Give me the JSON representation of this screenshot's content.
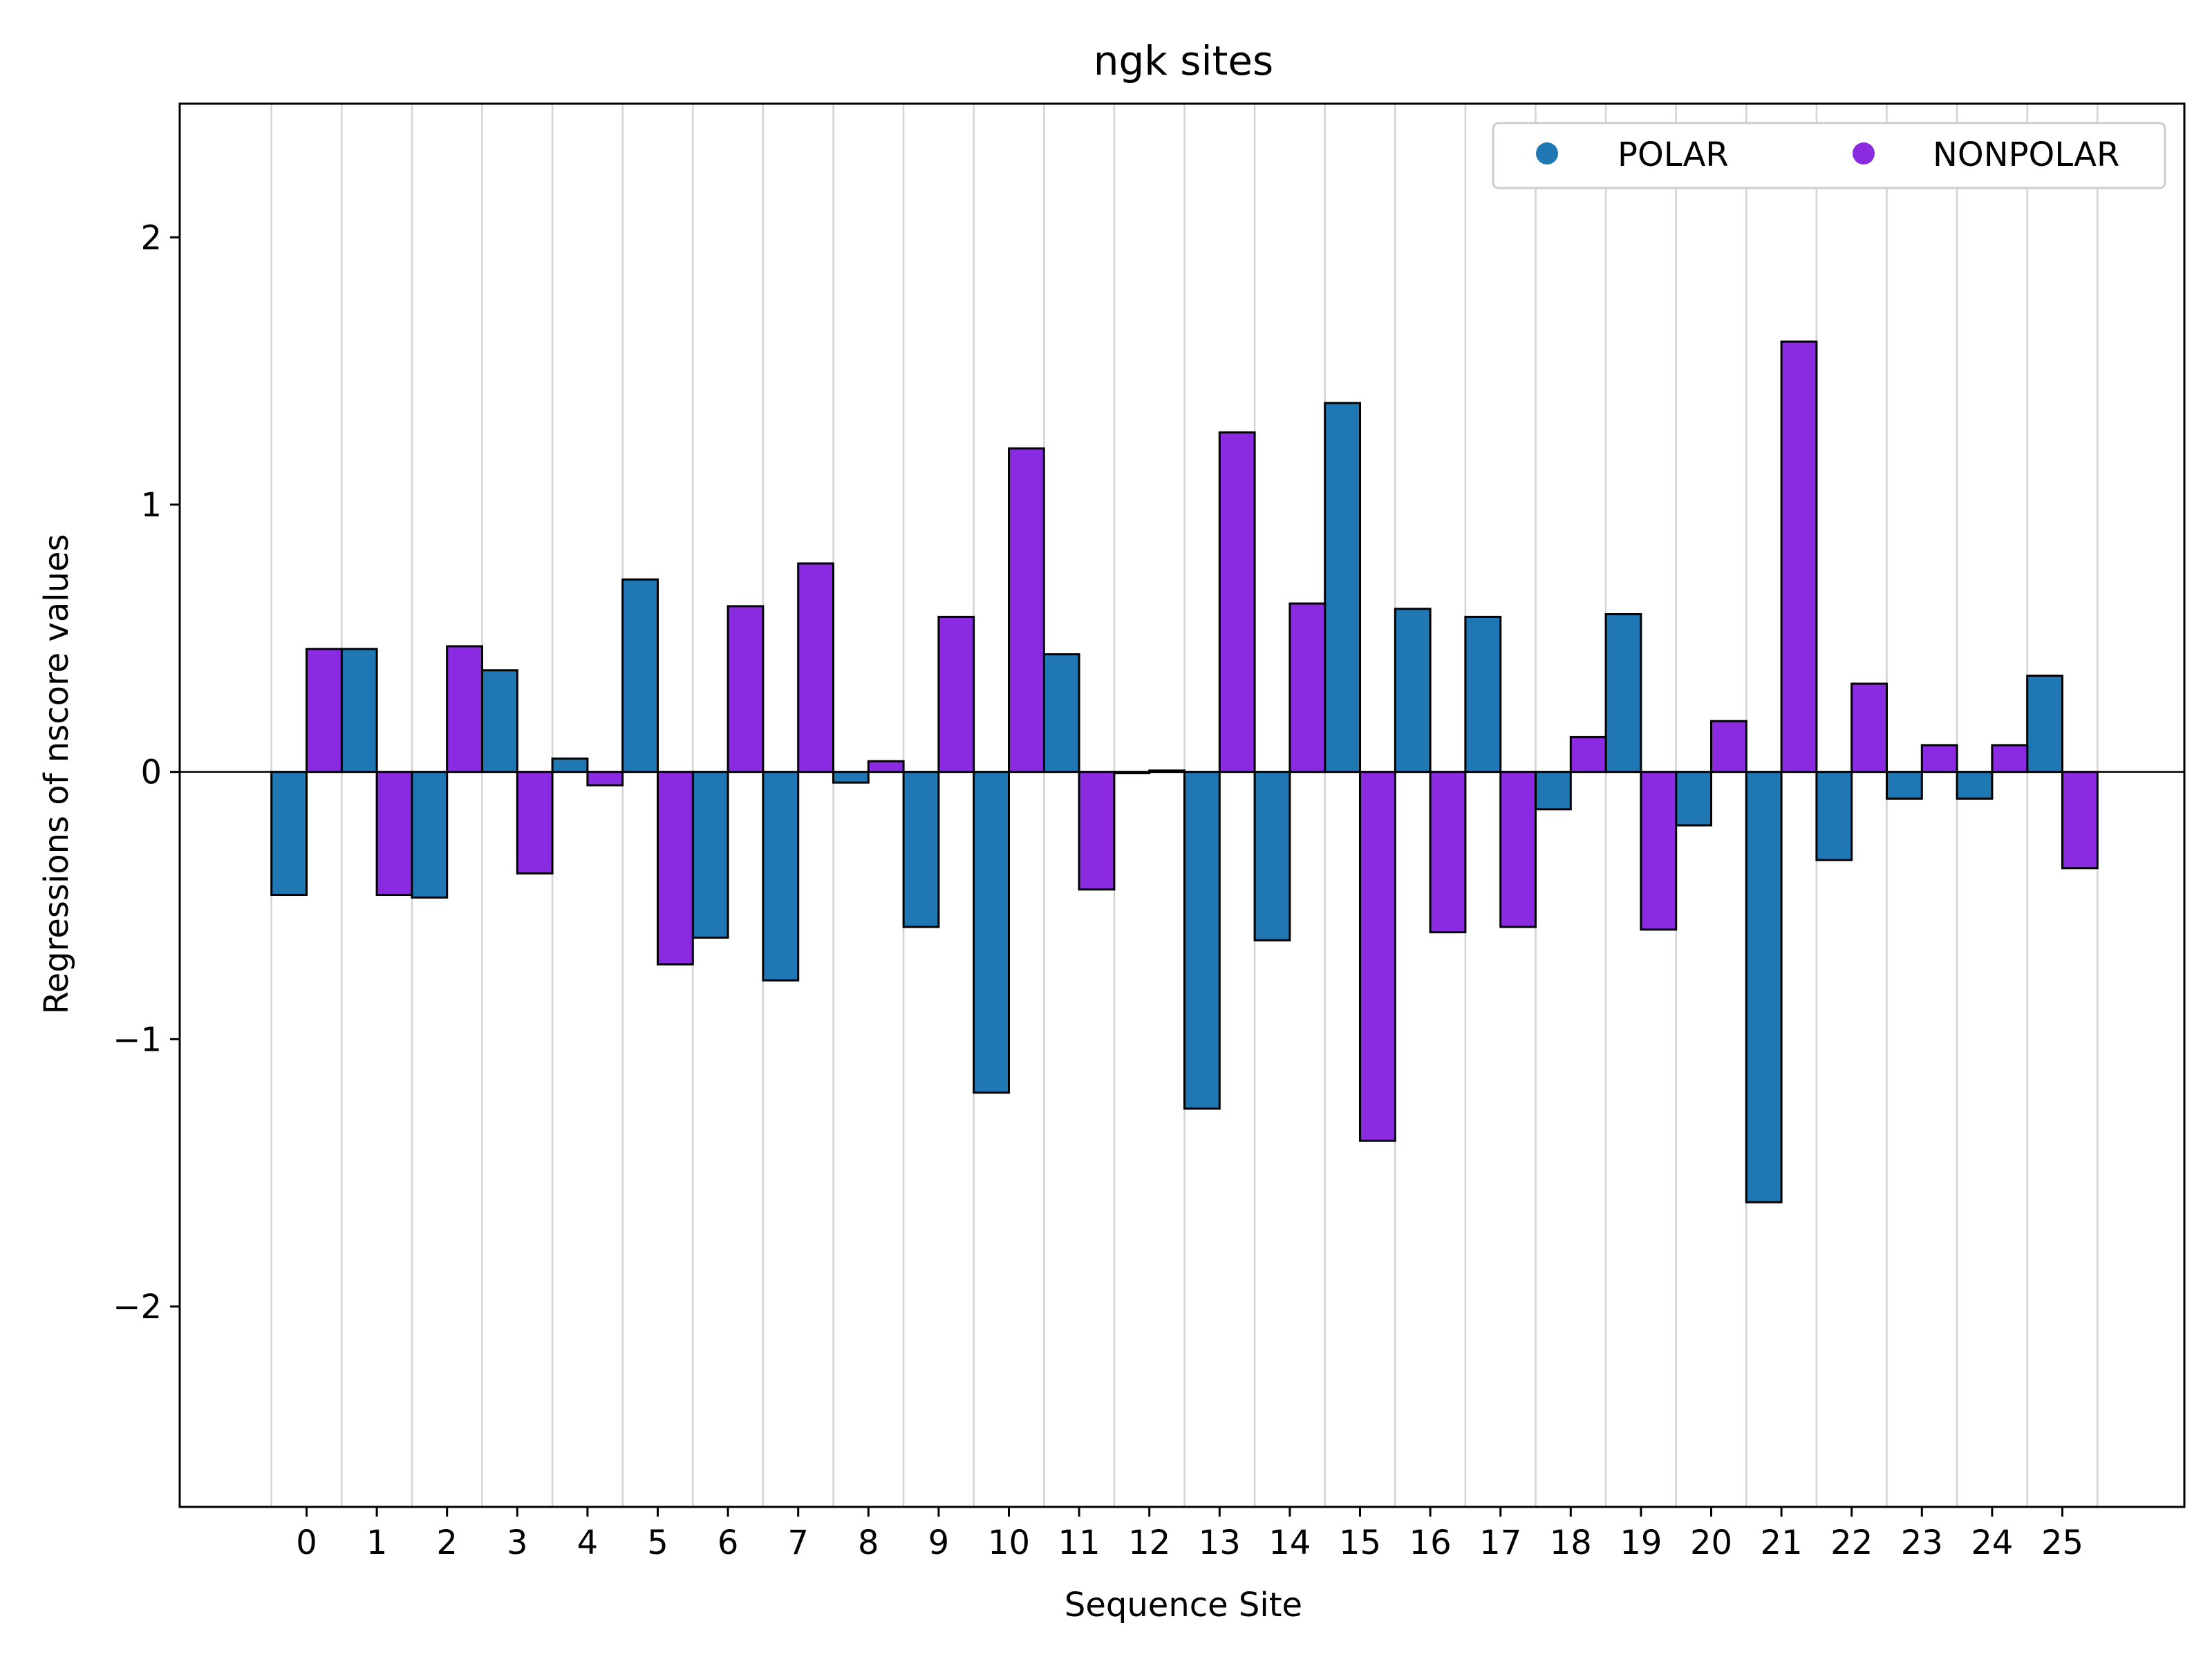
{
  "chart_data": {
    "type": "bar",
    "title": "ngk sites",
    "xlabel": "Sequence Site",
    "ylabel": "Regressions of nscore values",
    "categories": [
      "0",
      "1",
      "2",
      "3",
      "4",
      "5",
      "6",
      "7",
      "8",
      "9",
      "10",
      "11",
      "12",
      "13",
      "14",
      "15",
      "16",
      "17",
      "18",
      "19",
      "20",
      "21",
      "22",
      "23",
      "24",
      "25"
    ],
    "ylim": [
      -2.75,
      2.5
    ],
    "yticks": [
      -2,
      -1,
      0,
      1,
      2
    ],
    "ytick_labels": [
      "−2",
      "−1",
      "0",
      "1",
      "2"
    ],
    "grid": "vertical",
    "legend_position": "top-right",
    "series": [
      {
        "name": "POLAR",
        "color": "#1f77b4",
        "values": [
          -0.46,
          0.46,
          -0.47,
          0.38,
          0.05,
          0.72,
          -0.62,
          -0.78,
          -0.04,
          -0.58,
          -1.2,
          0.44,
          -0.005,
          -1.26,
          -0.63,
          1.38,
          0.61,
          0.58,
          -0.14,
          0.59,
          -0.2,
          -1.61,
          -0.33,
          -0.1,
          -0.1,
          0.36
        ]
      },
      {
        "name": "NONPOLAR",
        "color": "#8a2be2",
        "values": [
          0.46,
          -0.46,
          0.47,
          -0.38,
          -0.05,
          -0.72,
          0.62,
          0.78,
          0.04,
          0.58,
          1.21,
          -0.44,
          0.005,
          1.27,
          0.63,
          -1.38,
          -0.6,
          -0.58,
          0.13,
          -0.59,
          0.19,
          1.61,
          0.33,
          0.1,
          0.1,
          -0.36
        ]
      }
    ]
  }
}
